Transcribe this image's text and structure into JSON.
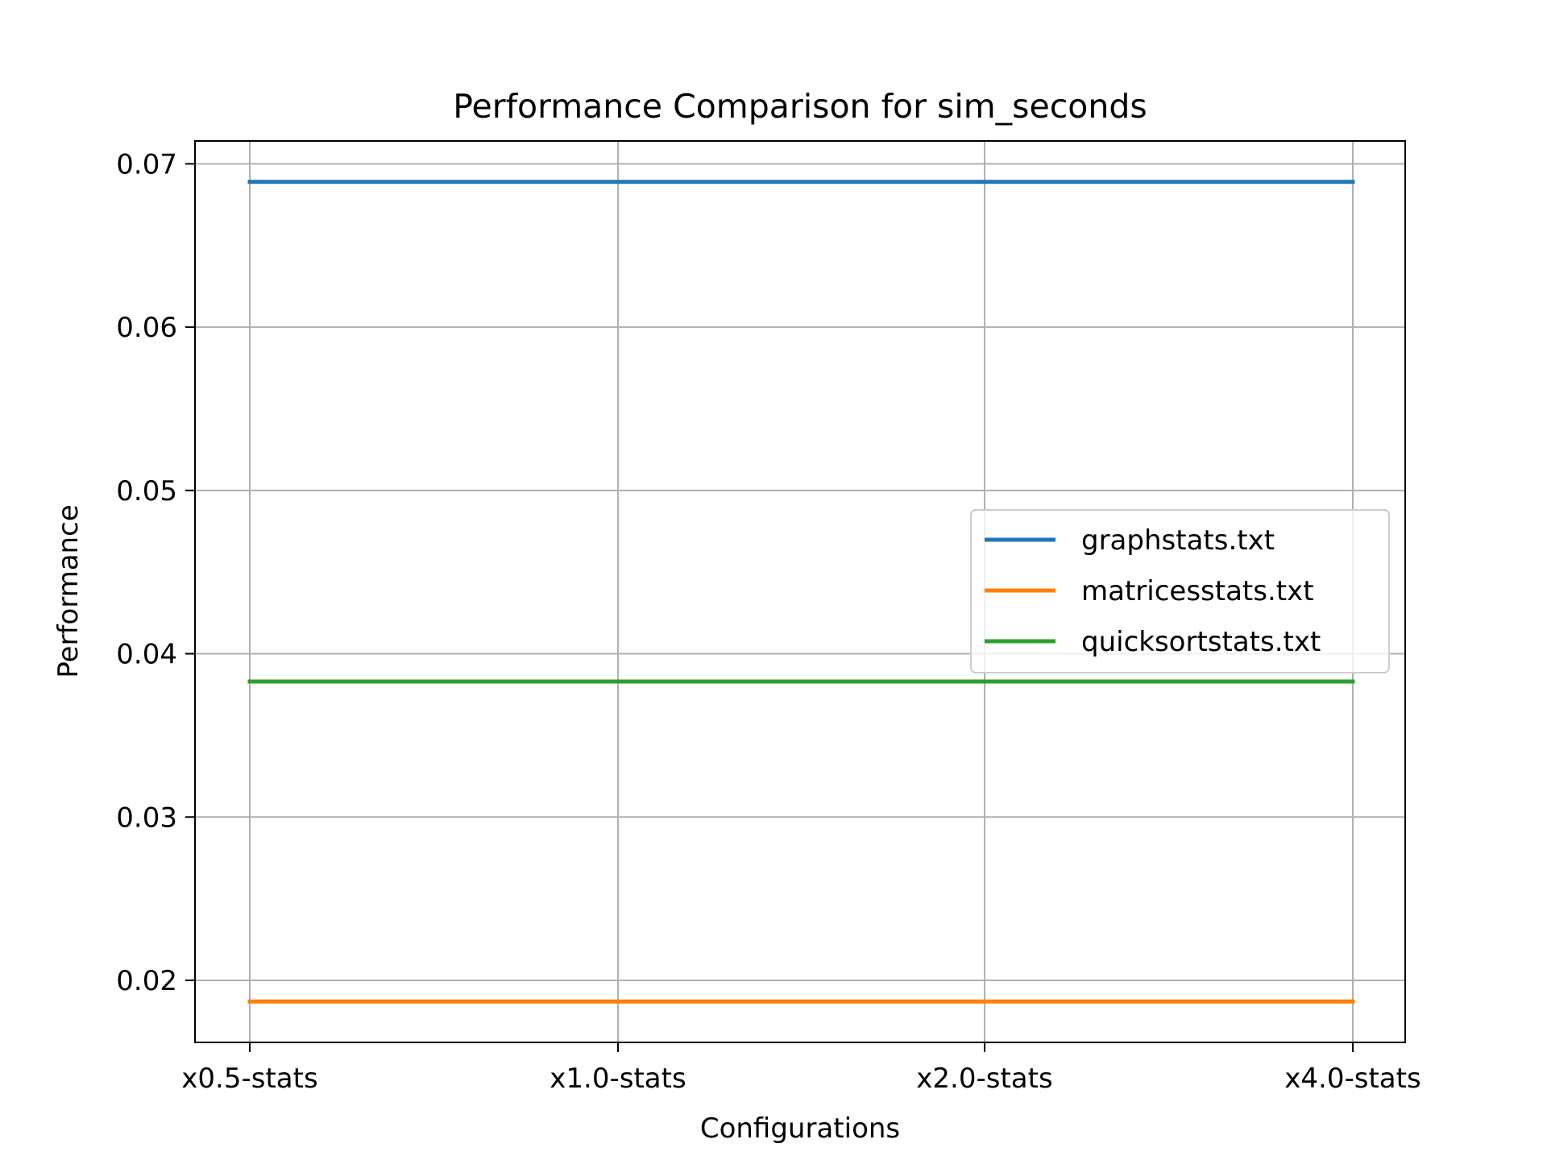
{
  "chart_data": {
    "type": "line",
    "title": "Performance Comparison for sim_seconds",
    "xlabel": "Configurations",
    "ylabel": "Performance",
    "categories": [
      "x0.5-stats",
      "x1.0-stats",
      "x2.0-stats",
      "x4.0-stats"
    ],
    "ylim": [
      0.0162,
      0.0714
    ],
    "yticks": [
      0.02,
      0.03,
      0.04,
      0.05,
      0.06,
      0.07
    ],
    "ytick_labels": [
      "0.02",
      "0.03",
      "0.04",
      "0.05",
      "0.06",
      "0.07"
    ],
    "grid": true,
    "legend_position": "center-right",
    "series": [
      {
        "name": "graphstats.txt",
        "color": "#1f77b4",
        "values": [
          0.0689,
          0.0689,
          0.0689,
          0.0689
        ]
      },
      {
        "name": "matricesstats.txt",
        "color": "#ff7f0e",
        "values": [
          0.0187,
          0.0187,
          0.0187,
          0.0187
        ]
      },
      {
        "name": "quicksortstats.txt",
        "color": "#2ca02c",
        "values": [
          0.0383,
          0.0383,
          0.0383,
          0.0383
        ]
      }
    ]
  }
}
